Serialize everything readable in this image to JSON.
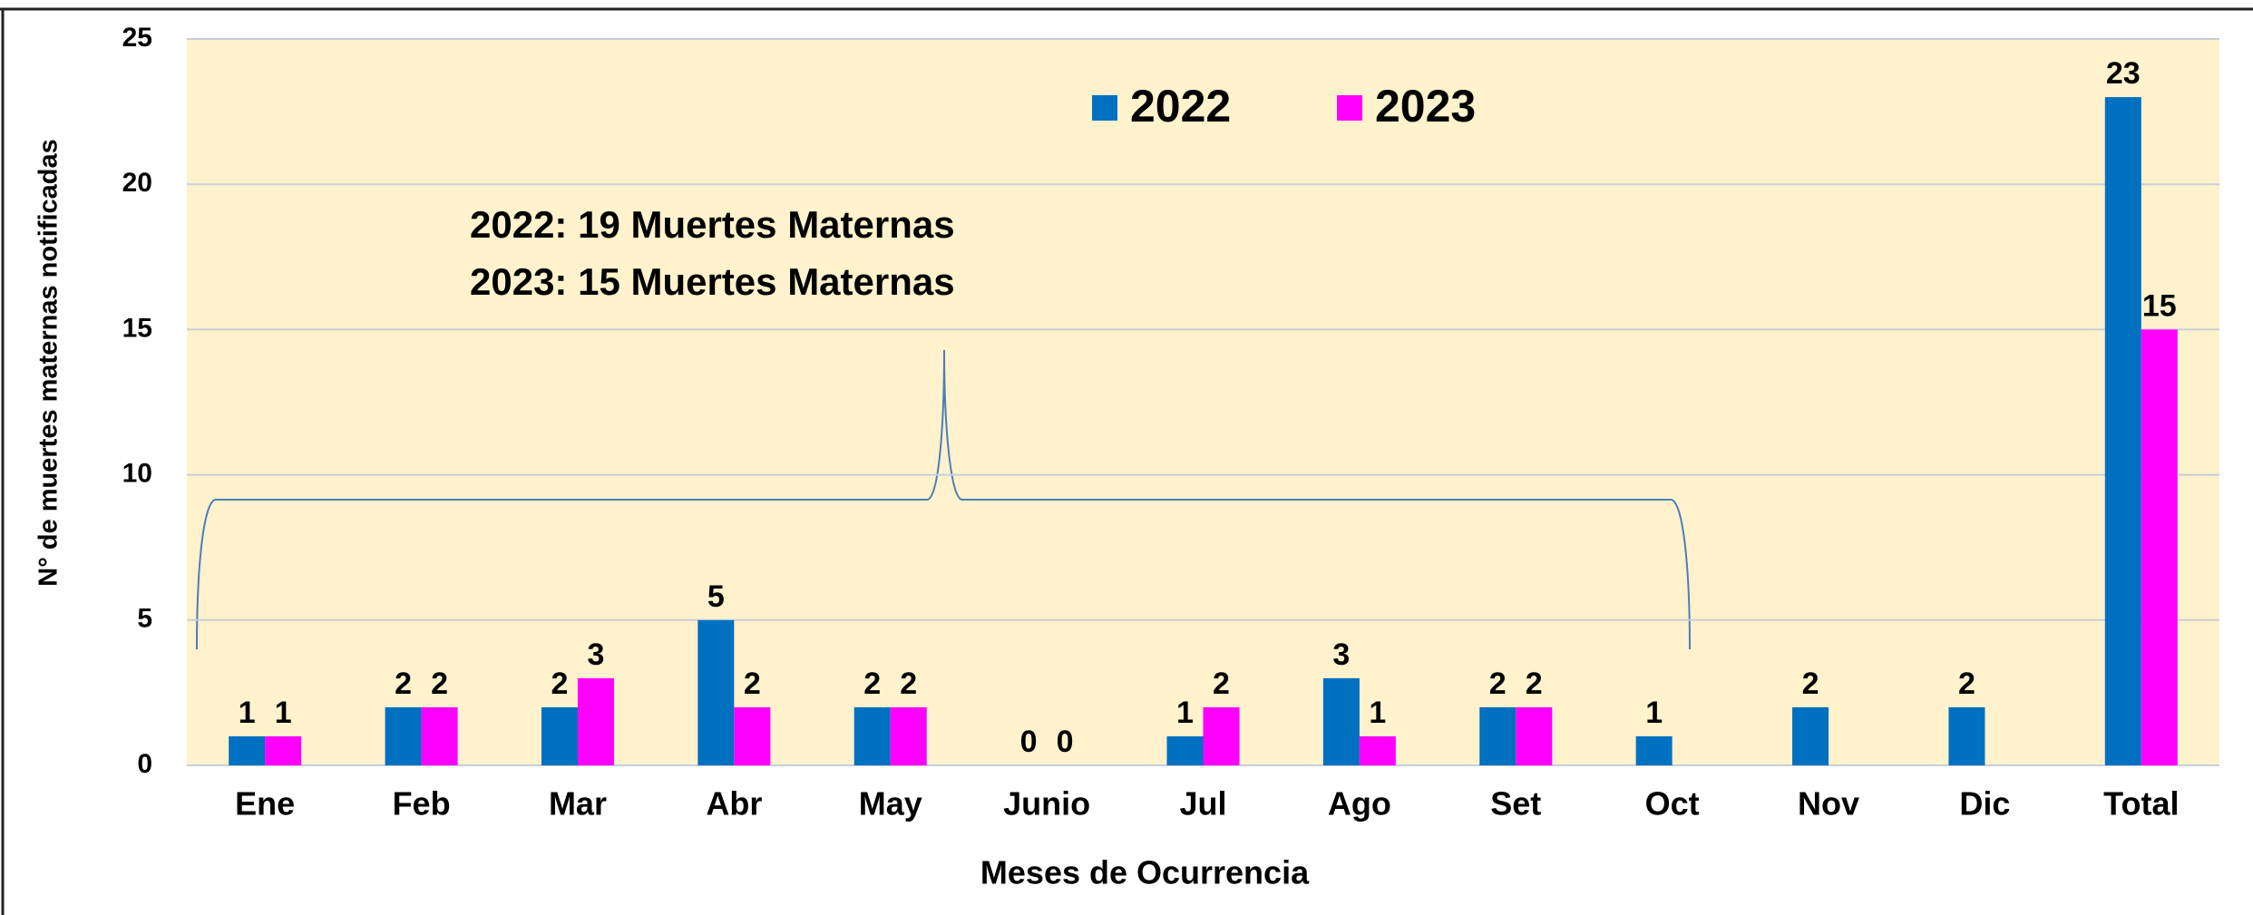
{
  "chart_data": {
    "type": "bar",
    "y_label": "N° de muertes maternas notificadas",
    "x_label": "Meses de Ocurrencia",
    "annotations": [
      "2022: 19 Muertes Maternas",
      "2023: 15 Muertes Maternas"
    ],
    "categories": [
      "Ene",
      "Feb",
      "Mar",
      "Abr",
      "May",
      "Junio",
      "Jul",
      "Ago",
      "Set",
      "Oct",
      "Nov",
      "Dic",
      "Total"
    ],
    "series": [
      {
        "name": "2022",
        "color": "#0070c0",
        "values": [
          1,
          2,
          2,
          5,
          2,
          0,
          1,
          3,
          2,
          1,
          2,
          2,
          23
        ]
      },
      {
        "name": "2023",
        "color": "#ff00ff",
        "values": [
          1,
          2,
          3,
          2,
          2,
          0,
          2,
          1,
          2,
          null,
          null,
          null,
          15
        ]
      }
    ],
    "ylim": [
      0,
      25
    ],
    "yticks": [
      0,
      5,
      10,
      15,
      20,
      25
    ],
    "grid": true,
    "legend": "top"
  }
}
